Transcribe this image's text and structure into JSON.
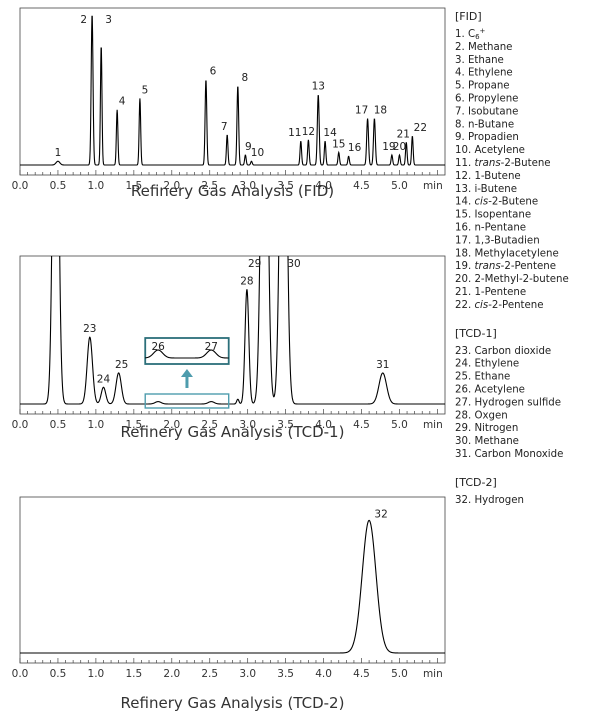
{
  "chart_data": [
    {
      "type": "line",
      "title": "Refinery Gas Analysis (FID)",
      "x_unit": "min",
      "xlim": [
        0.0,
        5.6
      ],
      "x_ticks": [
        "0.0",
        "0.5",
        "1.0",
        "1.5",
        "2.0",
        "2.5",
        "3.0",
        "3.5",
        "4.0",
        "4.5",
        "5.0"
      ],
      "peaks": [
        {
          "label": "1",
          "time": 0.5,
          "height": 0.03,
          "width": 0.025
        },
        {
          "label": "2",
          "time": 0.95,
          "height": 1.2,
          "width": 0.012
        },
        {
          "label": "3",
          "time": 1.07,
          "height": 0.95,
          "width": 0.01
        },
        {
          "label": "4",
          "time": 1.28,
          "height": 0.44,
          "width": 0.01
        },
        {
          "label": "5",
          "time": 1.58,
          "height": 0.53,
          "width": 0.01
        },
        {
          "label": "6",
          "time": 2.45,
          "height": 0.68,
          "width": 0.011
        },
        {
          "label": "7",
          "time": 2.73,
          "height": 0.24,
          "width": 0.01
        },
        {
          "label": "8",
          "time": 2.87,
          "height": 0.63,
          "width": 0.011
        },
        {
          "label": "9",
          "time": 2.97,
          "height": 0.08,
          "width": 0.01
        },
        {
          "label": "10",
          "time": 3.05,
          "height": 0.03,
          "width": 0.01
        },
        {
          "label": "11",
          "time": 3.7,
          "height": 0.19,
          "width": 0.01
        },
        {
          "label": "12",
          "time": 3.8,
          "height": 0.2,
          "width": 0.01
        },
        {
          "label": "13",
          "time": 3.93,
          "height": 0.56,
          "width": 0.012
        },
        {
          "label": "14",
          "time": 4.02,
          "height": 0.19,
          "width": 0.01
        },
        {
          "label": "15",
          "time": 4.2,
          "height": 0.1,
          "width": 0.01
        },
        {
          "label": "16",
          "time": 4.33,
          "height": 0.07,
          "width": 0.01
        },
        {
          "label": "17",
          "time": 4.58,
          "height": 0.37,
          "width": 0.012
        },
        {
          "label": "18",
          "time": 4.67,
          "height": 0.37,
          "width": 0.012
        },
        {
          "label": "19",
          "time": 4.9,
          "height": 0.08,
          "width": 0.01
        },
        {
          "label": "20",
          "time": 5.0,
          "height": 0.08,
          "width": 0.01
        },
        {
          "label": "21",
          "time": 5.09,
          "height": 0.18,
          "width": 0.01
        },
        {
          "label": "22",
          "time": 5.17,
          "height": 0.23,
          "width": 0.01
        }
      ]
    },
    {
      "type": "line",
      "title": "Refinery Gas Analysis (TCD-1)",
      "x_unit": "min",
      "xlim": [
        0.0,
        5.6
      ],
      "x_ticks": [
        "0.0",
        "0.5",
        "1.0",
        "1.5",
        "2.0",
        "2.5",
        "3.0",
        "3.5",
        "4.0",
        "4.5",
        "5.0"
      ],
      "peaks": [
        {
          "label": "",
          "time": 0.47,
          "height": 2.0,
          "width": 0.035
        },
        {
          "label": "23",
          "time": 0.92,
          "height": 0.28,
          "width": 0.035
        },
        {
          "label": "24",
          "time": 1.1,
          "height": 0.07,
          "width": 0.03
        },
        {
          "label": "25",
          "time": 1.3,
          "height": 0.13,
          "width": 0.035
        },
        {
          "label": "26",
          "time": 1.82,
          "height": 0.01,
          "width": 0.04
        },
        {
          "label": "27",
          "time": 2.52,
          "height": 0.01,
          "width": 0.04
        },
        {
          "label": "",
          "time": 2.87,
          "height": 0.02,
          "width": 0.015
        },
        {
          "label": "28",
          "time": 2.99,
          "height": 0.48,
          "width": 0.025
        },
        {
          "label": "29",
          "time": 3.22,
          "height": 2.0,
          "width": 0.04
        },
        {
          "label": "30",
          "time": 3.47,
          "height": 2.0,
          "width": 0.04
        },
        {
          "label": "31",
          "time": 4.78,
          "height": 0.13,
          "width": 0.05
        }
      ],
      "inset": {
        "peak_labels": [
          "26",
          "27"
        ]
      }
    },
    {
      "type": "line",
      "title": "Refinery Gas Analysis (TCD-2)",
      "x_unit": "min",
      "xlim": [
        0.0,
        5.6
      ],
      "x_ticks": [
        "0.0",
        "0.5",
        "1.0",
        "1.5",
        "2.0",
        "2.5",
        "3.0",
        "3.5",
        "4.0",
        "4.5",
        "5.0"
      ],
      "peaks": [
        {
          "label": "32",
          "time": 4.6,
          "height": 0.85,
          "width": 0.09
        }
      ]
    }
  ],
  "legend": {
    "groups": [
      {
        "heading": "[FID]",
        "items": [
          "1. C6+",
          "2. Methane",
          "3. Ethane",
          "4. Ethylene",
          "5. Propane",
          "6. Propylene",
          "7. Isobutane",
          "8. n-Butane",
          "9. Propadien",
          "10. Acetylene",
          "11. trans-2-Butene",
          "12. 1-Butene",
          "13. i-Butene",
          "14. cis-2-Butene",
          "15. Isopentane",
          "16. n-Pentane",
          "17. 1,3-Butadien",
          "18. Methylacetylene",
          "19. trans-2-Pentene",
          "20. 2-Methyl-2-butene",
          "21. 1-Pentene",
          "22. cis-2-Pentene"
        ]
      },
      {
        "heading": "[TCD-1]",
        "items": [
          "23. Carbon dioxide",
          "24. Ethylene",
          "25. Ethane",
          "26. Acetylene",
          "27. Hydrogen sulfide",
          "28. Oxgen",
          "29. Nitrogen",
          "30. Methane",
          "31. Carbon Monoxide"
        ]
      },
      {
        "heading": "[TCD-2]",
        "items": [
          "32. Hydrogen"
        ]
      }
    ]
  },
  "colors": {
    "trace": "#000000",
    "inset_box": "#2b6f7a",
    "inset_arrow": "#4e9cad"
  }
}
